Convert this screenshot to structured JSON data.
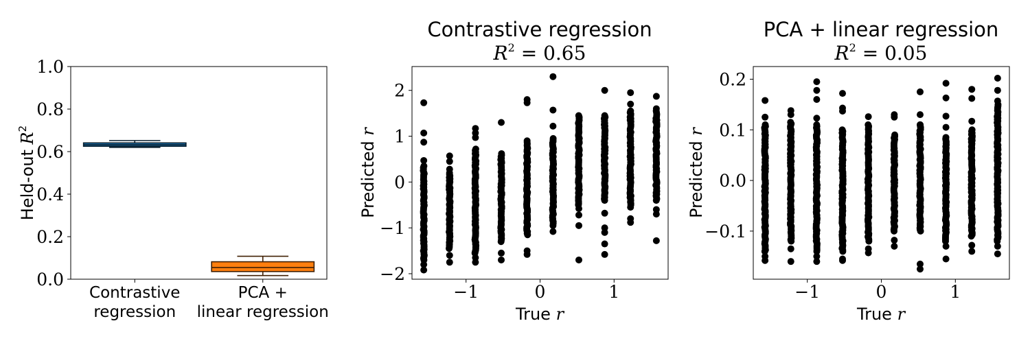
{
  "chart_data": [
    {
      "type": "box",
      "title": "",
      "ylabel_text": "Held-out ",
      "ylabel_math": "R",
      "ylabel_sup": "2",
      "ylim": [
        0.0,
        1.0
      ],
      "yticks": [
        0.0,
        0.2,
        0.4,
        0.6,
        0.8,
        1.0
      ],
      "ytick_labels": [
        "0.0",
        "0.2",
        "0.4",
        "0.6",
        "0.8",
        "1.0"
      ],
      "categories": [
        {
          "lines": [
            "Contrastive",
            "regression"
          ]
        },
        {
          "lines": [
            "PCA +",
            "linear regression"
          ]
        }
      ],
      "boxes": [
        {
          "whislo": 0.62,
          "q1": 0.625,
          "med": 0.632,
          "q3": 0.641,
          "whishi": 0.652,
          "color": "#1f77b4"
        },
        {
          "whislo": 0.017,
          "q1": 0.036,
          "med": 0.055,
          "q3": 0.082,
          "whishi": 0.108,
          "color": "#ff7f0e"
        }
      ]
    },
    {
      "type": "scatter",
      "title": "Contrastive regression",
      "subtitle_math": "R",
      "subtitle_sup": "2",
      "subtitle_rest": " = 0.65",
      "xlabel_text": "True ",
      "xlabel_math": "r",
      "ylabel_text": "Predicted ",
      "ylabel_math": "r",
      "xlim": [
        -1.73,
        1.73
      ],
      "ylim": [
        -2.12,
        2.52
      ],
      "xticks": [
        -1,
        0,
        1
      ],
      "xtick_labels": [
        "−1",
        "0",
        "1"
      ],
      "yticks": [
        -2,
        -1,
        0,
        1,
        2
      ],
      "ytick_labels": [
        "−2",
        "−1",
        "0",
        "1",
        "2"
      ],
      "x_levels": [
        -1.571,
        -1.222,
        -0.873,
        -0.524,
        -0.175,
        0.175,
        0.524,
        0.873,
        1.222,
        1.571
      ],
      "columns": [
        {
          "dense": [
            -1.7,
            0.35
          ],
          "outliers": [
            1.73,
            1.07,
            0.87,
            0.47,
            -1.8,
            -1.92
          ]
        },
        {
          "dense": [
            -1.45,
            0.2
          ],
          "outliers": [
            0.57,
            0.45,
            0.28,
            -1.6,
            -1.75
          ]
        },
        {
          "dense": [
            -1.55,
            0.72
          ],
          "outliers": [
            1.17,
            1.07,
            0.97,
            -1.65,
            -1.75
          ]
        },
        {
          "dense": [
            -1.3,
            0.62
          ],
          "outliers": [
            1.3,
            -1.55,
            -1.7
          ]
        },
        {
          "dense": [
            -1.15,
            0.9
          ],
          "outliers": [
            1.8,
            1.73,
            -1.5,
            -1.58
          ]
        },
        {
          "dense": [
            -0.9,
            0.95
          ],
          "outliers": [
            2.3,
            1.57,
            1.22,
            -0.95,
            -1.08
          ]
        },
        {
          "dense": [
            -0.5,
            1.45
          ],
          "outliers": [
            -0.58,
            -0.72,
            -0.95,
            -1.7
          ]
        },
        {
          "dense": [
            -0.4,
            1.45
          ],
          "outliers": [
            2.0,
            -0.68,
            -1.0,
            -1.1,
            -1.35,
            -1.58
          ]
        },
        {
          "dense": [
            -0.5,
            1.55
          ],
          "outliers": [
            1.95,
            1.7,
            -0.55,
            -0.8,
            -0.88
          ]
        },
        {
          "dense": [
            -0.4,
            1.55
          ],
          "outliers": [
            1.87,
            1.6,
            -0.6,
            -0.7,
            -1.28
          ]
        }
      ]
    },
    {
      "type": "scatter",
      "title": "PCA + linear regression",
      "subtitle_math": "R",
      "subtitle_sup": "2",
      "subtitle_rest": " = 0.05",
      "xlabel_text": "True ",
      "xlabel_math": "r",
      "ylabel_text": "Predicted ",
      "ylabel_math": "r",
      "xlim": [
        -1.73,
        1.73
      ],
      "ylim": [
        -0.195,
        0.225
      ],
      "xticks": [
        -1,
        0,
        1
      ],
      "xtick_labels": [
        "−1",
        "0",
        "1"
      ],
      "yticks": [
        -0.1,
        0.0,
        0.1,
        0.2
      ],
      "ytick_labels": [
        "−0.1",
        "0.0",
        "0.1",
        "0.2"
      ],
      "x_levels": [
        -1.571,
        -1.222,
        -0.873,
        -0.524,
        -0.175,
        0.175,
        0.524,
        0.873,
        1.222,
        1.571
      ],
      "columns": [
        {
          "dense": [
            -0.14,
            0.11
          ],
          "outliers": [
            0.158,
            0.125,
            -0.15,
            -0.158
          ]
        },
        {
          "dense": [
            -0.12,
            0.115
          ],
          "outliers": [
            0.138,
            0.13,
            -0.135,
            -0.16
          ]
        },
        {
          "dense": [
            -0.14,
            0.11
          ],
          "outliers": [
            0.195,
            0.178,
            0.16,
            0.123,
            -0.15,
            -0.16
          ]
        },
        {
          "dense": [
            -0.14,
            0.1
          ],
          "outliers": [
            0.172,
            0.143,
            0.137,
            -0.155,
            -0.158
          ]
        },
        {
          "dense": [
            -0.12,
            0.11
          ],
          "outliers": [
            0.126,
            -0.135,
            -0.143
          ]
        },
        {
          "dense": [
            -0.1,
            0.09
          ],
          "outliers": [
            0.13,
            0.125,
            -0.118,
            -0.13
          ]
        },
        {
          "dense": [
            -0.1,
            0.11
          ],
          "outliers": [
            0.175,
            0.13,
            0.11,
            -0.165,
            -0.175
          ]
        },
        {
          "dense": [
            -0.12,
            0.085
          ],
          "outliers": [
            0.192,
            0.163,
            0.127,
            0.105,
            -0.13,
            -0.155
          ]
        },
        {
          "dense": [
            -0.11,
            0.1
          ],
          "outliers": [
            0.18,
            0.162,
            0.117,
            -0.128,
            -0.14
          ]
        },
        {
          "dense": [
            -0.12,
            0.15
          ],
          "outliers": [
            0.202,
            0.178,
            0.157,
            -0.13,
            -0.145
          ]
        }
      ]
    }
  ]
}
